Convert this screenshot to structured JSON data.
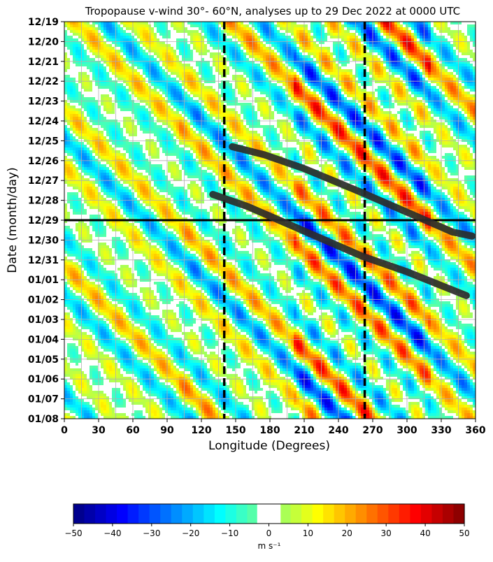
{
  "chart_data": {
    "type": "heatmap",
    "title": "Tropopause v-wind 30°- 60°N, analyses up to 29 Dec 2022 at 0000 UTC",
    "xlabel": "Longitude (Degrees)",
    "ylabel": "Date (month/day)",
    "x_ticks": [
      0,
      30,
      60,
      90,
      120,
      150,
      180,
      210,
      240,
      270,
      300,
      330,
      360
    ],
    "xlim": [
      0,
      360
    ],
    "y_ticks": [
      "12/19",
      "12/20",
      "12/21",
      "12/22",
      "12/23",
      "12/24",
      "12/25",
      "12/26",
      "12/27",
      "12/28",
      "12/29",
      "12/30",
      "12/31",
      "01/01",
      "01/02",
      "01/03",
      "01/04",
      "01/05",
      "01/06",
      "01/07",
      "01/08"
    ],
    "ylim": [
      "12/19",
      "01/08"
    ],
    "grid": true,
    "vertical_lines": [
      140,
      263
    ],
    "horizontal_line": "12/29",
    "trend_lines": [
      {
        "points": [
          [
            130,
            8.7
          ],
          [
            160,
            9.3
          ],
          [
            200,
            10.3
          ],
          [
            260,
            11.8
          ],
          [
            300,
            12.6
          ],
          [
            352,
            13.8
          ]
        ]
      },
      {
        "points": [
          [
            147,
            6.3
          ],
          [
            175,
            6.7
          ],
          [
            210,
            7.4
          ],
          [
            260,
            8.6
          ],
          [
            300,
            9.6
          ],
          [
            340,
            10.6
          ],
          [
            357,
            10.8
          ]
        ]
      }
    ],
    "colorbar": {
      "ticks": [
        -50,
        -40,
        -30,
        -20,
        -10,
        0,
        10,
        20,
        30,
        40,
        50
      ],
      "range": [
        -50,
        50
      ],
      "unit": "m s⁻¹",
      "blank_range": [
        -3,
        3
      ]
    }
  }
}
